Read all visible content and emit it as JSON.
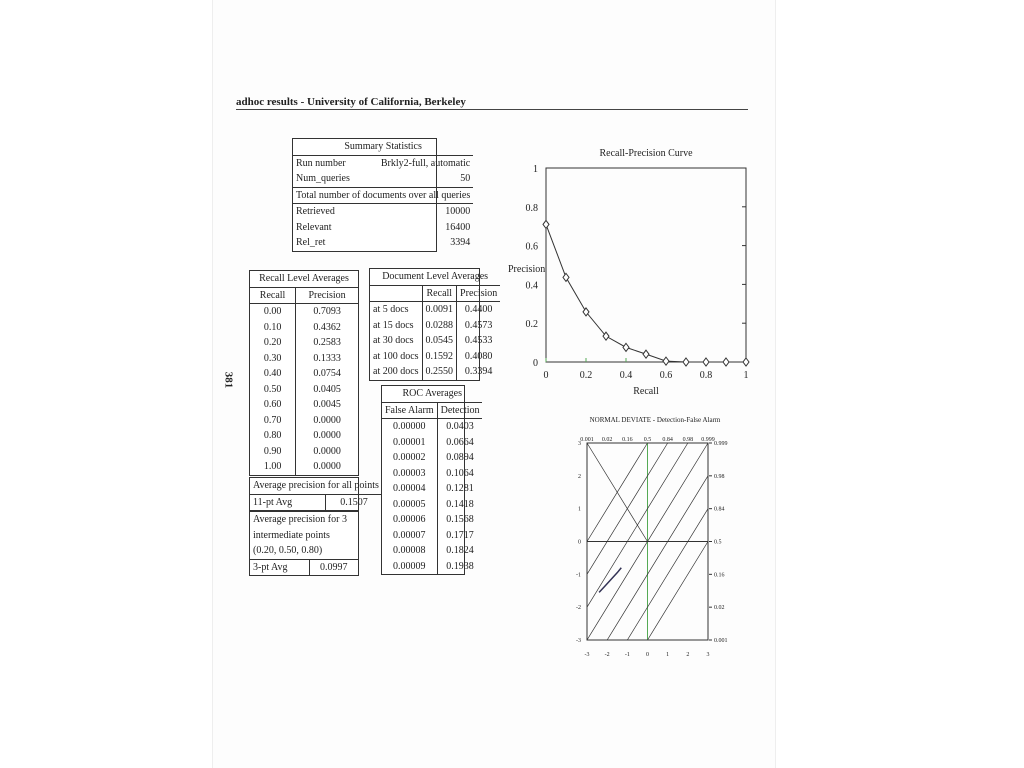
{
  "header": {
    "title": "adhoc results - University of California, Berkeley",
    "page_number": "381"
  },
  "summary": {
    "title": "Summary Statistics",
    "run_label": "Run number",
    "run_value": "Brkly2-full, automatic",
    "queries_label": "Num_queries",
    "queries_value": "50",
    "total_label": "Total number of documents over all queries",
    "retrieved_label": "Retrieved",
    "retrieved_value": "10000",
    "relevant_label": "Relevant",
    "relevant_value": "16400",
    "relret_label": "Rel_ret",
    "relret_value": "3394"
  },
  "recall_table": {
    "title": "Recall Level Averages",
    "col_recall": "Recall",
    "col_precision": "Precision",
    "rows": [
      [
        "0.00",
        "0.7093"
      ],
      [
        "0.10",
        "0.4362"
      ],
      [
        "0.20",
        "0.2583"
      ],
      [
        "0.30",
        "0.1333"
      ],
      [
        "0.40",
        "0.0754"
      ],
      [
        "0.50",
        "0.0405"
      ],
      [
        "0.60",
        "0.0045"
      ],
      [
        "0.70",
        "0.0000"
      ],
      [
        "0.80",
        "0.0000"
      ],
      [
        "0.90",
        "0.0000"
      ],
      [
        "1.00",
        "0.0000"
      ]
    ],
    "avg_all_label": "Average precision for all points",
    "pt11_label": "11-pt Avg",
    "pt11_value": "0.1507",
    "avg3_label_1": "Average precision for 3",
    "avg3_label_2": "intermediate points",
    "avg3_label_3": "(0.20, 0.50, 0.80)",
    "pt3_label": "3-pt Avg",
    "pt3_value": "0.0997"
  },
  "doc_table": {
    "title": "Document Level Averages",
    "col_recall": "Recall",
    "col_precision": "Precision",
    "rows": [
      [
        "at 5 docs",
        "0.0091",
        "0.4400"
      ],
      [
        "at 15 docs",
        "0.0288",
        "0.4573"
      ],
      [
        "at 30 docs",
        "0.0545",
        "0.4533"
      ],
      [
        "at 100 docs",
        "0.1592",
        "0.4080"
      ],
      [
        "at 200 docs",
        "0.2550",
        "0.3394"
      ]
    ]
  },
  "roc_table": {
    "title": "ROC Averages",
    "col_fa": "False Alarm",
    "col_det": "Detection",
    "rows": [
      [
        "0.00000",
        "0.0403"
      ],
      [
        "0.00001",
        "0.0664"
      ],
      [
        "0.00002",
        "0.0894"
      ],
      [
        "0.00003",
        "0.1064"
      ],
      [
        "0.00004",
        "0.1281"
      ],
      [
        "0.00005",
        "0.1418"
      ],
      [
        "0.00006",
        "0.1568"
      ],
      [
        "0.00007",
        "0.1717"
      ],
      [
        "0.00008",
        "0.1824"
      ],
      [
        "0.00009",
        "0.1938"
      ]
    ]
  },
  "chart_data": [
    {
      "type": "line",
      "title": "Recall-Precision Curve",
      "xlabel": "Recall",
      "ylabel": "Precision",
      "xlim": [
        0,
        1
      ],
      "ylim": [
        0,
        1
      ],
      "x_ticks": [
        "0",
        "0.2",
        "0.4",
        "0.6",
        "0.8",
        "1"
      ],
      "y_ticks": [
        "0",
        "0.2",
        "0.4",
        "0.6",
        "0.8",
        "1"
      ],
      "x": [
        0,
        0.1,
        0.2,
        0.3,
        0.4,
        0.5,
        0.6,
        0.7,
        0.8,
        0.9,
        1.0
      ],
      "y": [
        0.7093,
        0.4362,
        0.2583,
        0.1333,
        0.0754,
        0.0405,
        0.0045,
        0,
        0,
        0,
        0
      ],
      "marker": "diamond"
    },
    {
      "type": "line",
      "title": "NORMAL DEVIATE - Detection-False Alarm",
      "xlim": [
        -3,
        3
      ],
      "ylim": [
        -3,
        3
      ],
      "x_ticks": [
        "-3",
        "-2",
        "-1",
        "0",
        "1",
        "2",
        "3"
      ],
      "y_ticks": [
        "-3",
        "-2",
        "-1",
        "0",
        "1",
        "2",
        "3"
      ],
      "top_ticks": [
        "0.001",
        "0.02",
        "0.16",
        "0.5",
        "0.84",
        "0.98",
        "0.999"
      ],
      "right_ticks": [
        "0.001",
        "0.02",
        "0.16",
        "0.5",
        "0.84",
        "0.98",
        "0.999"
      ],
      "curve_x": [
        -2.4,
        -2.1,
        -1.8,
        -1.5,
        -1.3
      ],
      "curve_y": [
        -1.55,
        -1.35,
        -1.15,
        -0.95,
        -0.8
      ]
    }
  ]
}
